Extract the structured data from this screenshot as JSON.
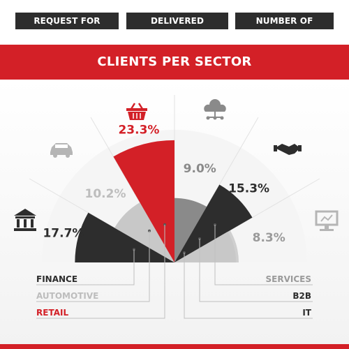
{
  "tabs": [
    {
      "label": "REQUEST FOR QUOTES"
    },
    {
      "label": "DELIVERED PROJECTS"
    },
    {
      "label": "NUMBER OF CLIENTS"
    }
  ],
  "banner": {
    "title": "CLIENTS PER SECTOR"
  },
  "chart_data": {
    "type": "pie",
    "layout": "semicircle-polar-area",
    "title": "CLIENTS PER SECTOR",
    "sectors": [
      {
        "name": "FINANCE",
        "value": 17.7,
        "label": "17.7%",
        "color": "#2d2d2d",
        "label_color": "#2d2d2d",
        "icon": "bank-icon"
      },
      {
        "name": "AUTOMOTIVE",
        "value": 10.2,
        "label": "10.2%",
        "color": "#c8c8c8",
        "label_color": "#bdbdbd",
        "icon": "car-icon"
      },
      {
        "name": "RETAIL",
        "value": 23.3,
        "label": "23.3%",
        "color": "#d32027",
        "label_color": "#d32027",
        "icon": "shopping-basket-icon"
      },
      {
        "name": "IT",
        "value": 9.0,
        "label": "9.0%",
        "color": "#8a8a8a",
        "label_color": "#8a8a8a",
        "icon": "cloud-network-icon"
      },
      {
        "name": "B2B",
        "value": 15.3,
        "label": "15.3%",
        "color": "#2d2d2d",
        "label_color": "#2d2d2d",
        "icon": "handshake-icon"
      },
      {
        "name": "SERVICES",
        "value": 8.3,
        "label": "8.3%",
        "color": "#c8c8c8",
        "label_color": "#9a9a9a",
        "icon": "monitor-icon"
      }
    ],
    "legend_left": [
      {
        "text": "FINANCE",
        "color": "#2d2d2d"
      },
      {
        "text": "AUTOMOTIVE",
        "color": "#bdbdbd"
      },
      {
        "text": "RETAIL",
        "color": "#d32027"
      }
    ],
    "legend_right": [
      {
        "text": "SERVICES",
        "color": "#9a9a9a"
      },
      {
        "text": "B2B",
        "color": "#2d2d2d"
      },
      {
        "text": "IT",
        "color": "#2d2d2d"
      }
    ],
    "max_value": 25
  }
}
